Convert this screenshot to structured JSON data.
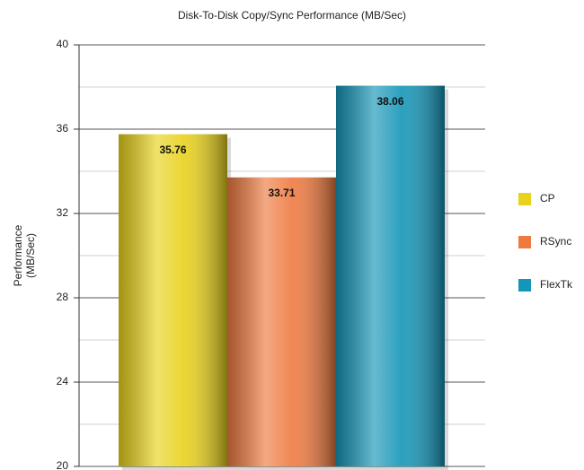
{
  "chart_data": {
    "type": "bar",
    "title": "Disk-To-Disk Copy/Sync Performance (MB/Sec)",
    "ylabel": [
      "Performance",
      "(MB/Sec)"
    ],
    "series": [
      {
        "name": "CP",
        "color": "#e8d21c",
        "values": [
          35.76
        ]
      },
      {
        "name": "RSync",
        "color": "#ee7a40",
        "values": [
          33.71
        ]
      },
      {
        "name": "FlexTk",
        "color": "#1596b8",
        "values": [
          38.06
        ]
      }
    ],
    "ylim": [
      20,
      40
    ],
    "yticks": [
      20,
      24,
      28,
      32,
      36,
      40
    ],
    "minor_yticks": [
      22,
      26,
      30,
      34,
      38
    ],
    "grid": true,
    "legend": "right"
  }
}
